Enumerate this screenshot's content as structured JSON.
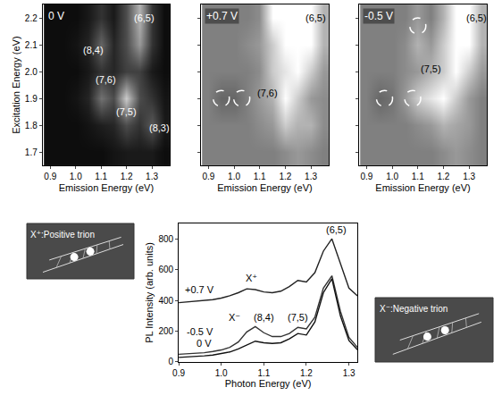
{
  "chart_data": [
    {
      "type": "heatmap",
      "title": "0 V",
      "x_label": "Emission Energy (eV)",
      "y_label": "Excitation Energy (eV)",
      "xlim": [
        0.87,
        1.37
      ],
      "xticks": [
        0.9,
        {
          "value": 1,
          "label": "1.0"
        },
        1.1,
        1.2,
        1.3
      ],
      "ylim": [
        1.65,
        2.25
      ],
      "yticks": [
        1.7,
        1.8,
        1.9,
        {
          "value": 2,
          "label": "2.0"
        },
        2.1,
        2.2
      ],
      "zlim": [
        0,
        1
      ],
      "x": [
        0.9,
        0.95,
        1.0,
        1.05,
        1.1,
        1.15,
        1.2,
        1.25,
        1.3,
        1.35
      ],
      "y": [
        1.7,
        1.8,
        1.9,
        2.0,
        2.1,
        2.2
      ],
      "z": [
        [
          0.05,
          0.05,
          0.05,
          0.05,
          0.05,
          0.08,
          0.1,
          0.1,
          0.1,
          0.05
        ],
        [
          0.05,
          0.05,
          0.05,
          0.08,
          0.12,
          0.15,
          0.3,
          0.2,
          0.35,
          0.1
        ],
        [
          0.05,
          0.05,
          0.08,
          0.15,
          0.45,
          0.3,
          0.8,
          0.3,
          0.2,
          0.08
        ],
        [
          0.05,
          0.05,
          0.05,
          0.1,
          0.2,
          0.15,
          0.25,
          0.25,
          0.1,
          0.05
        ],
        [
          0.05,
          0.05,
          0.08,
          0.15,
          0.4,
          0.15,
          0.3,
          0.6,
          0.2,
          0.05
        ],
        [
          0.05,
          0.05,
          0.05,
          0.1,
          0.2,
          0.1,
          0.3,
          0.7,
          0.2,
          0.05
        ]
      ],
      "annotations": [
        {
          "text": "(8,4)",
          "x": 1.07,
          "y": 2.08
        },
        {
          "text": "(6,5)",
          "x": 1.27,
          "y": 2.2
        },
        {
          "text": "(7,6)",
          "x": 1.12,
          "y": 1.97
        },
        {
          "text": "(7,5)",
          "x": 1.2,
          "y": 1.85
        },
        {
          "text": "(8,3)",
          "x": 1.33,
          "y": 1.79
        }
      ],
      "circles": []
    },
    {
      "type": "heatmap",
      "title": "+0.7 V",
      "tick_labels": "x",
      "x_label": "Emission Energy (eV)",
      "xlim": [
        0.87,
        1.37
      ],
      "xticks": [
        0.9,
        {
          "value": 1,
          "label": "1.0"
        },
        1.1,
        1.2,
        1.3
      ],
      "ylim": [
        1.65,
        2.25
      ],
      "yticks": [
        1.7,
        1.8,
        1.9,
        2.0,
        2.1,
        2.2
      ],
      "zlim": [
        0,
        1
      ],
      "x": [
        0.9,
        0.95,
        1.0,
        1.05,
        1.1,
        1.15,
        1.2,
        1.25,
        1.3,
        1.35
      ],
      "y": [
        1.7,
        1.8,
        1.9,
        2.0,
        2.1,
        2.2
      ],
      "z": [
        [
          0.5,
          0.5,
          0.5,
          0.5,
          0.5,
          0.5,
          0.55,
          0.6,
          0.55,
          0.5
        ],
        [
          0.5,
          0.5,
          0.5,
          0.5,
          0.55,
          0.6,
          0.8,
          0.7,
          0.7,
          0.55
        ],
        [
          0.5,
          0.4,
          0.4,
          0.5,
          0.6,
          0.7,
          1,
          0.8,
          0.6,
          0.55
        ],
        [
          0.5,
          0.5,
          0.5,
          0.5,
          0.55,
          0.8,
          0.9,
          1,
          0.8,
          0.6
        ],
        [
          0.5,
          0.5,
          0.5,
          0.55,
          0.6,
          0.8,
          1,
          1,
          1,
          0.7
        ],
        [
          0.5,
          0.5,
          0.5,
          0.5,
          0.55,
          1,
          1,
          1,
          1,
          0.7
        ]
      ],
      "annotations": [
        {
          "text": "(6,5)",
          "x": 1.32,
          "y": 2.2
        },
        {
          "text": "(7,6)",
          "x": 1.13,
          "y": 1.92
        }
      ],
      "circles": [
        {
          "x": 0.95,
          "y": 1.9
        },
        {
          "x": 1.03,
          "y": 1.9
        }
      ]
    },
    {
      "type": "heatmap",
      "title": "-0.5 V",
      "tick_labels": "x",
      "x_label": "Emission Energy (eV)",
      "xlim": [
        0.87,
        1.37
      ],
      "xticks": [
        0.9,
        {
          "value": 1,
          "label": "1.0"
        },
        1.1,
        1.2,
        1.3
      ],
      "ylim": [
        1.65,
        2.25
      ],
      "yticks": [
        1.7,
        1.8,
        1.9,
        2.0,
        2.1,
        2.2
      ],
      "zlim": [
        0,
        1
      ],
      "x": [
        0.9,
        0.95,
        1.0,
        1.05,
        1.1,
        1.15,
        1.2,
        1.25,
        1.3,
        1.35
      ],
      "y": [
        1.7,
        1.8,
        1.9,
        2.0,
        2.1,
        2.2
      ],
      "z": [
        [
          0.5,
          0.5,
          0.5,
          0.5,
          0.5,
          0.5,
          0.55,
          0.6,
          0.55,
          0.5
        ],
        [
          0.5,
          0.5,
          0.5,
          0.5,
          0.55,
          0.6,
          0.7,
          0.65,
          0.6,
          0.5
        ],
        [
          0.5,
          0.4,
          0.45,
          0.6,
          0.8,
          0.9,
          1,
          0.8,
          0.6,
          0.5
        ],
        [
          0.5,
          0.5,
          0.5,
          0.55,
          0.6,
          0.7,
          0.8,
          1,
          0.8,
          0.6
        ],
        [
          0.5,
          0.5,
          0.5,
          0.55,
          0.7,
          0.6,
          0.8,
          1,
          1,
          0.7
        ],
        [
          0.5,
          0.5,
          0.5,
          0.5,
          0.6,
          0.5,
          0.7,
          1,
          1,
          0.7
        ]
      ],
      "annotations": [
        {
          "text": "(6,5)",
          "x": 1.33,
          "y": 2.2
        },
        {
          "text": "(7,5)",
          "x": 1.15,
          "y": 2.01
        }
      ],
      "circles": [
        {
          "x": 0.97,
          "y": 1.9
        },
        {
          "x": 1.08,
          "y": 1.9
        },
        {
          "x": 1.1,
          "y": 2.17
        }
      ]
    },
    {
      "type": "line",
      "x_label": "Photon Energy (eV)",
      "y_label": "PL Intensity (arb. units)",
      "xlim": [
        0.9,
        1.32
      ],
      "xticks": [
        0.9,
        {
          "value": 1,
          "label": "1.0"
        },
        1.1,
        1.2,
        1.3
      ],
      "ylim": [
        0,
        900
      ],
      "yticks": [
        0,
        200,
        400,
        600,
        800
      ],
      "x": [
        0.9,
        0.92,
        0.94,
        0.96,
        0.98,
        1.0,
        1.02,
        1.04,
        1.06,
        1.08,
        1.1,
        1.12,
        1.14,
        1.16,
        1.18,
        1.2,
        1.22,
        1.24,
        1.26,
        1.28,
        1.3,
        1.32
      ],
      "series": [
        {
          "name": "+0.7 V",
          "color": "#222222",
          "values": [
            385,
            390,
            395,
            400,
            405,
            415,
            430,
            450,
            475,
            470,
            455,
            450,
            460,
            490,
            530,
            520,
            580,
            720,
            800,
            640,
            480,
            430
          ]
        },
        {
          "name": "-0.5 V",
          "color": "#333333",
          "values": [
            50,
            52,
            55,
            60,
            68,
            78,
            95,
            130,
            195,
            230,
            190,
            165,
            165,
            185,
            225,
            215,
            290,
            480,
            560,
            330,
            160,
            95
          ]
        },
        {
          "name": "0 V",
          "color": "#111111",
          "values": [
            30,
            32,
            35,
            40,
            45,
            55,
            65,
            85,
            110,
            135,
            125,
            120,
            125,
            150,
            185,
            175,
            260,
            450,
            540,
            300,
            140,
            80
          ]
        }
      ],
      "annotations": [
        {
          "text": "+0.7 V",
          "x": 0.95,
          "y": 470
        },
        {
          "text": "X⁺",
          "x": 1.07,
          "y": 545
        },
        {
          "text": "-0.5 V",
          "x": 0.95,
          "y": 200
        },
        {
          "text": "0 V",
          "x": 0.96,
          "y": 120
        },
        {
          "text": "X⁻",
          "x": 1.03,
          "y": 290
        },
        {
          "text": "(8,4)",
          "x": 1.1,
          "y": 290
        },
        {
          "text": "(7,5)",
          "x": 1.18,
          "y": 290
        },
        {
          "text": "(6,5)",
          "x": 1.27,
          "y": 860
        }
      ],
      "inset_labels": [
        "X⁺:Positive trion",
        "X⁻:Negative trion"
      ]
    }
  ]
}
